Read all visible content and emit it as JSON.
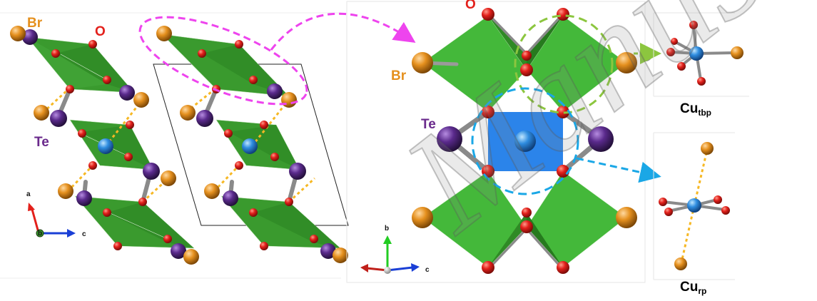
{
  "labels": {
    "br_left": "Br",
    "o_left": "O",
    "te_left": "Te",
    "o_center": "O",
    "br_center": "Br",
    "te_center": "Te",
    "cu_tbp_main": "Cu",
    "cu_tbp_sub": "tbp",
    "cu_rp_main": "Cu",
    "cu_rp_sub": "rp"
  },
  "axes_left": {
    "up": "a",
    "right": "c",
    "origin": "b"
  },
  "axes_center": {
    "up": "b",
    "right": "c"
  },
  "watermark": {
    "text": "Manuscript"
  },
  "colors": {
    "octahedron_green": "#3a9a2e",
    "octahedron_light_green": "#45b83a",
    "square_blue": "#2b84ea",
    "oxygen_red": "#e3201b",
    "bromine_orange": "#e5901e",
    "tellurium_purple": "#5a2a8c",
    "copper_blue": "#2f8de0",
    "bond_yellow": "#f6b824",
    "magenta_ellipse": "#ee44ee",
    "green_circle": "#8cc63f",
    "cyan_circle": "#1aa7e6"
  }
}
